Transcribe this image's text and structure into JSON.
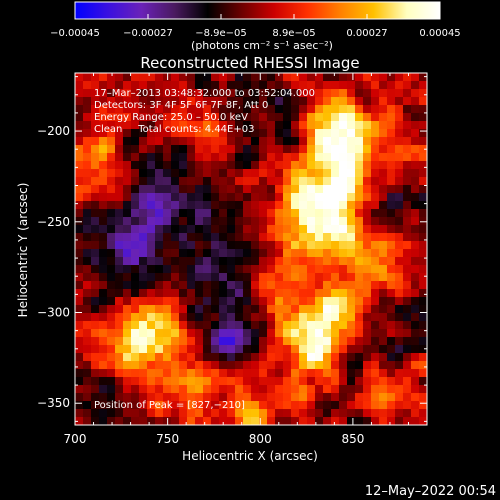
{
  "chart_data": {
    "type": "heatmap",
    "title": "Reconstructed RHESSI Image",
    "xlabel": "Heliocentric X (arcsec)",
    "ylabel": "Heliocentric Y (arcsec)",
    "xlim": [
      700,
      890
    ],
    "ylim": [
      -362,
      -168
    ],
    "x_ticks": [
      700,
      750,
      800,
      850
    ],
    "y_ticks": [
      -200,
      -250,
      -300,
      -350
    ],
    "x_tick_labels": [
      "700",
      "750",
      "800",
      "850"
    ],
    "y_tick_labels": [
      "−200",
      "−250",
      "−300",
      "−350"
    ],
    "colorbar": {
      "range": [
        -0.00045,
        0.00045
      ],
      "tick_labels": [
        "−0.00045",
        "−0.00027",
        "−8.9e−05",
        "8.9e−05",
        "0.00027",
        "0.00045"
      ],
      "units_label": "(photons cm⁻² s⁻¹ asec⁻²)",
      "colors": [
        "#0000ff",
        "#3a10e0",
        "#6a22b8",
        "#4a1a60",
        "#000000",
        "#6a0000",
        "#cc0000",
        "#ff3000",
        "#ff8000",
        "#ffc000",
        "#ffffc0",
        "#ffffff"
      ]
    },
    "annotations": [
      "17–Mar–2013 03:48:32.000 to 03:52:04.000",
      "Detectors: 3F 4F 5F 6F 7F 8F, Att 0",
      "Energy Range: 25.0 – 50.0 keV",
      "Clean     Total counts: 4.44E+03"
    ],
    "peak_label": "Position of Peak = [827,−210]",
    "peak": [
      827,
      -210
    ],
    "hot_spots": [
      {
        "x": 842,
        "y": -200,
        "strength": 1.0
      },
      {
        "x": 845,
        "y": -222,
        "strength": 0.85
      },
      {
        "x": 826,
        "y": -242,
        "strength": 0.75
      },
      {
        "x": 845,
        "y": -252,
        "strength": 0.65
      },
      {
        "x": 862,
        "y": -278,
        "strength": 0.6
      },
      {
        "x": 818,
        "y": -262,
        "strength": 0.55
      },
      {
        "x": 827,
        "y": -318,
        "strength": 0.85
      },
      {
        "x": 840,
        "y": -300,
        "strength": 0.6
      },
      {
        "x": 805,
        "y": -292,
        "strength": 0.5
      },
      {
        "x": 742,
        "y": -308,
        "strength": 0.9
      },
      {
        "x": 725,
        "y": -325,
        "strength": 0.6
      },
      {
        "x": 760,
        "y": -340,
        "strength": 0.55
      },
      {
        "x": 712,
        "y": -215,
        "strength": 0.55
      },
      {
        "x": 770,
        "y": -205,
        "strength": 0.5
      },
      {
        "x": 800,
        "y": -350,
        "strength": 0.5
      },
      {
        "x": 875,
        "y": -340,
        "strength": 0.45
      },
      {
        "x": 880,
        "y": -215,
        "strength": 0.45
      }
    ],
    "cold_spots": [
      {
        "x": 732,
        "y": -262,
        "strength": 0.9
      },
      {
        "x": 788,
        "y": -268,
        "strength": 0.85
      },
      {
        "x": 752,
        "y": -228,
        "strength": 0.7
      },
      {
        "x": 782,
        "y": -308,
        "strength": 0.85
      },
      {
        "x": 868,
        "y": -312,
        "strength": 0.6
      },
      {
        "x": 872,
        "y": -228,
        "strength": 0.55
      },
      {
        "x": 800,
        "y": -195,
        "strength": 0.5
      },
      {
        "x": 720,
        "y": -345,
        "strength": 0.5
      }
    ]
  },
  "footer": {
    "timestamp": "12–May–2022 00:54"
  }
}
